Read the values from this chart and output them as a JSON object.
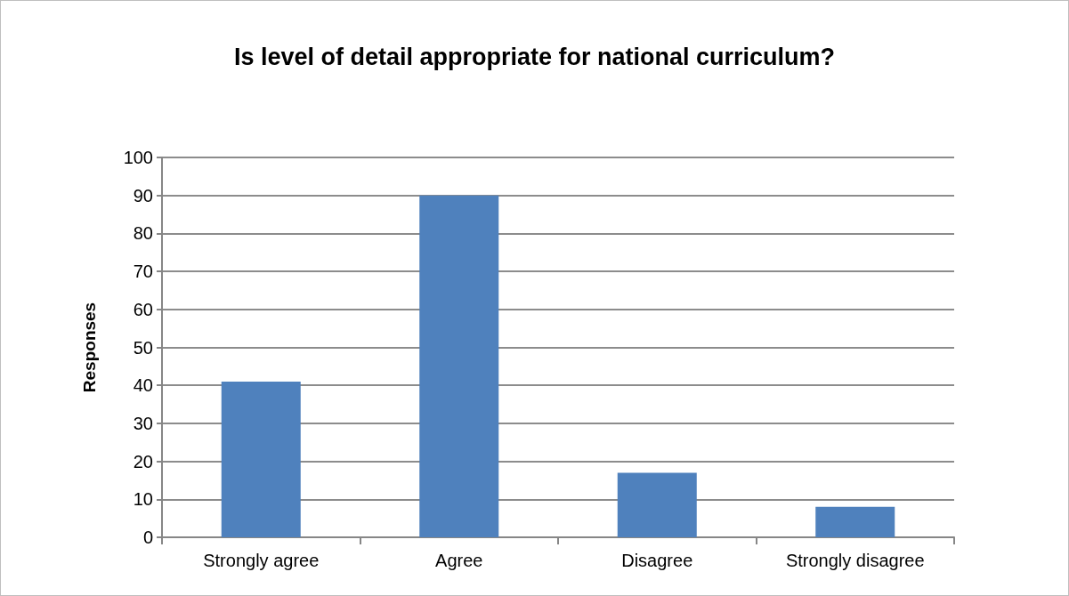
{
  "chart_data": {
    "type": "bar",
    "title": "Is level of detail appropriate for national curriculum?",
    "ylabel": "Responses",
    "categories": [
      "Strongly agree",
      "Agree",
      "Disagree",
      "Strongly disagree"
    ],
    "values": [
      41,
      90,
      17,
      8
    ],
    "color": "#4f81bd",
    "ylim": [
      0,
      100
    ],
    "yticks": [
      0,
      10,
      20,
      30,
      40,
      50,
      60,
      70,
      80,
      90,
      100
    ],
    "grid": "y"
  }
}
